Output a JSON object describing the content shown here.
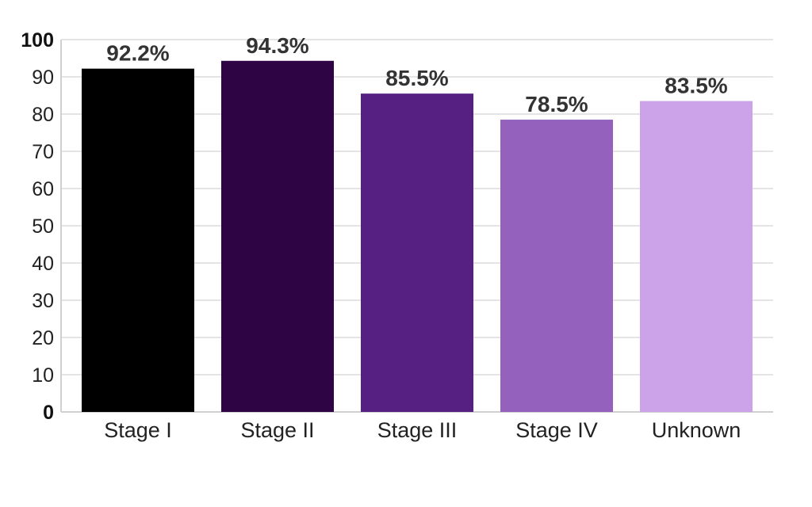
{
  "chart_data": {
    "type": "bar",
    "title": "",
    "xlabel": "",
    "ylabel": "",
    "ylim": [
      0,
      100
    ],
    "yticks": [
      0,
      10,
      20,
      30,
      40,
      50,
      60,
      70,
      80,
      90,
      100
    ],
    "grid": true,
    "categories": [
      "Stage I",
      "Stage II",
      "Stage III",
      "Stage IV",
      "Unknown"
    ],
    "values": [
      92.2,
      94.3,
      85.5,
      78.5,
      83.5
    ],
    "data_labels": [
      "92.2%",
      "94.3%",
      "85.5%",
      "78.5%",
      "83.5%"
    ],
    "colors": [
      "#000000",
      "#2e0445",
      "#562082",
      "#9462bd",
      "#cca3e8"
    ]
  }
}
